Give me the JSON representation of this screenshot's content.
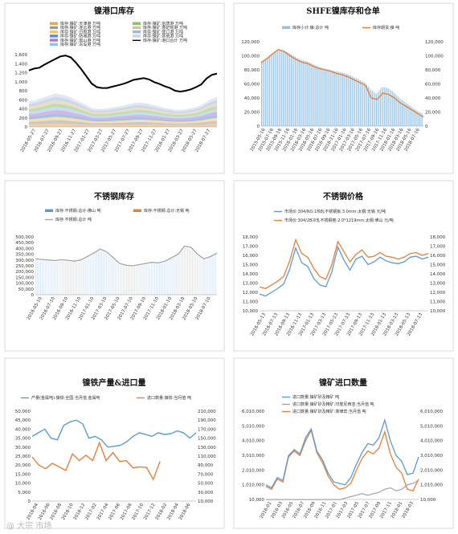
{
  "watermark": "@ 大宗 市场",
  "chart_data": [
    {
      "id": "nickel-port",
      "type": "area",
      "title": "镍港口库存",
      "ylim": [
        0,
        1600
      ],
      "yticks": [
        0,
        200,
        400,
        600,
        800,
        1000,
        1200,
        1400,
        1600
      ],
      "y_tick_labels": [
        "0",
        "200",
        "400",
        "600",
        "800",
        "1,000",
        "1,200",
        "1,400",
        "1,600"
      ],
      "x_tick_labels": [
        "2016-05-27",
        "2016-07-27",
        "2016-09-27",
        "2016-11-27",
        "2017-01-27",
        "2017-03-27",
        "2017-05-27",
        "2017-07-27",
        "2017-09-27",
        "2017-11-27",
        "2018-01-27",
        "2018-03-27",
        "2018-05-27",
        "2018-07-27"
      ],
      "legend": [
        {
          "name": "库存:镍矿:天津港 万吨",
          "color": "#e8a55a"
        },
        {
          "name": "库存:镍矿:连云港 万吨",
          "color": "#9a9a9a"
        },
        {
          "name": "库存:镍矿:日照港 万吨",
          "color": "#f2c76a"
        },
        {
          "name": "库存:镍矿:防城港 万吨",
          "color": "#5b8fd8"
        },
        {
          "name": "库存:镍矿:岚山港 万吨",
          "color": "#b07acb"
        },
        {
          "name": "库存:镍矿:青岛港 万吨",
          "color": "#8fc4ea"
        },
        {
          "name": "库存:镍矿:京唐港 万吨",
          "color": "#8fbf6a"
        },
        {
          "name": "库存:镍矿:曹妃甸港 万吨",
          "color": "#d9c39a"
        },
        {
          "name": "库存:镍矿:营口港 万吨",
          "color": "#a2b8d8"
        },
        {
          "name": "库存:镍矿:其他港 万吨",
          "color": "#c9d6ea"
        },
        {
          "name": "库存:镍矿:港口合计 万吨",
          "color": "#000000"
        }
      ],
      "total": [
        1250,
        1290,
        1310,
        1380,
        1440,
        1500,
        1560,
        1580,
        1540,
        1420,
        1280,
        1120,
        960,
        880,
        860,
        860,
        890,
        920,
        950,
        990,
        1040,
        1060,
        1080,
        1050,
        990,
        950,
        900,
        860,
        800,
        780,
        800,
        830,
        880,
        940,
        1070,
        1150,
        1180
      ],
      "stack_base": [
        560,
        580,
        620,
        660,
        700,
        740,
        720,
        700,
        650,
        600,
        540,
        480,
        420,
        400,
        400,
        410,
        430,
        450,
        470,
        500,
        520,
        540,
        530,
        510,
        480,
        450,
        420,
        400,
        380,
        380,
        390,
        410,
        440,
        480,
        560,
        620,
        660
      ]
    },
    {
      "id": "shfe-nickel",
      "type": "bar+line",
      "title": "SHFE镍库存和仓单",
      "ylim": [
        0,
        120000
      ],
      "yticks": [
        0,
        20000,
        40000,
        60000,
        80000,
        100000,
        120000
      ],
      "y_tick_labels": [
        "0",
        "20,000",
        "40,000",
        "60,000",
        "80,000",
        "100,000",
        "120,000"
      ],
      "x_tick_labels": [
        "2015-05-16",
        "2015-07-16",
        "2015-09-16",
        "2015-11-16",
        "2016-01-16",
        "2016-03-16",
        "2016-05-16",
        "2016-07-16",
        "2016-09-16",
        "2016-11-16",
        "2017-01-16",
        "2017-03-16",
        "2017-05-16",
        "2017-07-16",
        "2017-09-16",
        "2017-11-16",
        "2018-01-16",
        "2018-03-16",
        "2018-05-16",
        "2018-07-16"
      ],
      "series": [
        {
          "name": "库存小计:镍:总计 吨",
          "color": "#8fc0e8",
          "values": [
            92000,
            98000,
            104000,
            108000,
            107000,
            103000,
            98000,
            94000,
            92000,
            88000,
            84000,
            82000,
            80000,
            78000,
            76000,
            74000,
            70000,
            66000,
            62000,
            52000,
            46000,
            56000,
            54000,
            48000,
            40000,
            34000,
            28000,
            22000,
            18000
          ]
        },
        {
          "name": "库存期货:镍 吨",
          "color": "#e8803a",
          "values": [
            90000,
            96000,
            103000,
            109000,
            106000,
            100000,
            95000,
            91000,
            89000,
            85000,
            82000,
            80000,
            78000,
            75000,
            73000,
            70000,
            66000,
            62000,
            58000,
            40000,
            38000,
            47000,
            45000,
            40000,
            33000,
            28000,
            23000,
            18000,
            13000
          ]
        }
      ]
    },
    {
      "id": "stainless-inventory",
      "type": "bar+line",
      "title": "不锈钢库存",
      "ylim": [
        0,
        500000
      ],
      "yticks": [
        0,
        50000,
        100000,
        150000,
        200000,
        250000,
        300000,
        350000,
        400000,
        450000,
        500000
      ],
      "y_tick_labels": [
        "0",
        "50,000",
        "100,000",
        "150,000",
        "200,000",
        "250,000",
        "300,000",
        "350,000",
        "400,000",
        "450,000",
        "500,000"
      ],
      "x_tick_labels": [
        "2016-05-10",
        "2016-07-10",
        "2016-09-10",
        "2016-11-10",
        "2017-01-10",
        "2017-03-10",
        "2017-05-10",
        "2017-07-10",
        "2017-09-10",
        "2017-11-10",
        "2018-01-10",
        "2018-03-10",
        "2018-05-10",
        "2018-07-10"
      ],
      "series": [
        {
          "name": "库存:不锈钢:总计:佛山 吨",
          "color": "#5b9bd5"
        },
        {
          "name": "库存:不锈钢:总计:无锡 吨",
          "color": "#e8803a"
        },
        {
          "name": "库存:不锈钢:总计 吨",
          "color": "#a5a5a5",
          "values": [
            310000,
            305000,
            300000,
            295000,
            302000,
            298000,
            290000,
            300000,
            330000,
            360000,
            395000,
            370000,
            320000,
            270000,
            255000,
            250000,
            260000,
            270000,
            280000,
            275000,
            290000,
            320000,
            350000,
            420000,
            410000,
            350000,
            310000,
            330000,
            360000
          ]
        }
      ],
      "bar_values": [
        300000,
        295000,
        290000,
        285000,
        292000,
        288000,
        280000,
        290000,
        320000,
        350000,
        385000,
        360000,
        310000,
        260000,
        245000,
        240000,
        250000,
        260000,
        270000,
        265000,
        280000,
        310000,
        340000,
        410000,
        400000,
        340000,
        300000,
        320000,
        350000
      ]
    },
    {
      "id": "stainless-price",
      "type": "line",
      "title": "不锈钢价格",
      "ylim": [
        10000,
        18000
      ],
      "yticks": [
        10000,
        11000,
        12000,
        13000,
        14000,
        15000,
        16000,
        17000,
        18000
      ],
      "y_tick_labels": [
        "10,000",
        "11,000",
        "12,000",
        "13,000",
        "14,000",
        "15,000",
        "16,000",
        "17,000",
        "18,000"
      ],
      "x_tick_labels": [
        "2016-05-13",
        "2016-07-13",
        "2016-09-13",
        "2016-11-13",
        "2017-01-13",
        "2017-03-13",
        "2017-05-13",
        "2017-07-13",
        "2017-09-13",
        "2017-11-13",
        "2018-01-13",
        "2018-03-13",
        "2018-05-13",
        "2018-07-13"
      ],
      "series": [
        {
          "name": "市场价:304/NO.1热轧不锈钢板:3.0mm:太钢:无锡 元/吨",
          "color": "#5b9bd5",
          "values": [
            11800,
            11600,
            12000,
            12400,
            12900,
            14500,
            16800,
            15200,
            14800,
            13500,
            12800,
            12600,
            14200,
            16900,
            15500,
            14400,
            15600,
            15900,
            15000,
            15300,
            15800,
            15400,
            15200,
            15100,
            15300,
            15800,
            15900,
            15600,
            15800
          ]
        },
        {
          "name": "市场价:304/2B冷轧不锈钢卷:2.0*1219mm:太钢:佛山 元/吨",
          "color": "#e8803a",
          "values": [
            12600,
            12400,
            12800,
            13200,
            13700,
            15400,
            17700,
            16200,
            15800,
            14600,
            13700,
            13400,
            15000,
            17500,
            16400,
            15300,
            16100,
            16600,
            15800,
            15900,
            16300,
            15900,
            15800,
            15600,
            15800,
            16200,
            16300,
            16000,
            16200
          ]
        }
      ]
    },
    {
      "id": "nickel-iron",
      "type": "line",
      "title": "镍铁产量&进口量",
      "ylim_left": [
        0,
        50000
      ],
      "ylim_right": [
        10000,
        210000
      ],
      "yticks_left": [
        0,
        5000,
        10000,
        15000,
        20000,
        25000,
        30000,
        35000,
        40000,
        45000,
        50000
      ],
      "y_tick_labels_left": [
        "0",
        "5,000",
        "10,000",
        "15,000",
        "20,000",
        "25,000",
        "30,000",
        "35,000",
        "40,000",
        "45,000",
        "50,000"
      ],
      "yticks_right": [
        10000,
        30000,
        50000,
        70000,
        90000,
        110000,
        130000,
        150000,
        170000,
        190000,
        210000
      ],
      "y_tick_labels_right": [
        "10,000",
        "30,000",
        "50,000",
        "70,000",
        "90,000",
        "110,000",
        "130,000",
        "150,000",
        "170,000",
        "190,000",
        "210,000"
      ],
      "x_tick_labels": [
        "2016-04",
        "2016-06",
        "2016-08",
        "2016-10",
        "2016-12",
        "2017-02",
        "2017-04",
        "2017-06",
        "2017-08",
        "2017-10",
        "2017-12",
        "2018-02",
        "2018-04",
        "2018-06"
      ],
      "series": [
        {
          "name": "产量(金属吨):镍铁:全国:当月值 金属吨",
          "color": "#5b9bd5",
          "axis": "left",
          "values": [
            36000,
            38000,
            40000,
            35000,
            34000,
            42000,
            44000,
            45000,
            43000,
            35000,
            36000,
            34000,
            30000,
            30500,
            31000,
            33000,
            36000,
            38000,
            37000,
            36000,
            38000,
            37000,
            37500,
            39000,
            38000,
            35000,
            38000
          ]
        },
        {
          "name": "进口数量:镍铁:当月值 吨",
          "color": "#e8803a",
          "axis": "right",
          "values": [
            108000,
            90000,
            82000,
            94000,
            86000,
            78000,
            115000,
            100000,
            112000,
            100000,
            140000,
            100000,
            118000,
            98000,
            100000,
            84000,
            86000,
            85000,
            58000,
            98000
          ]
        }
      ]
    },
    {
      "id": "nickel-ore-import",
      "type": "line",
      "title": "镍矿进口数量",
      "ylim": [
        10000,
        6010000
      ],
      "yticks": [
        10000,
        1010000,
        2010000,
        3010000,
        4010000,
        5010000,
        6010000
      ],
      "y_tick_labels": [
        "10,000",
        "1,010,000",
        "2,010,000",
        "3,010,000",
        "4,010,000",
        "5,010,000",
        "6,010,000"
      ],
      "x_tick_labels": [
        "2016-01",
        "2016-03",
        "2016-05",
        "2016-07",
        "2016-09",
        "2016-11",
        "2017-01",
        "2017-03",
        "2017-05",
        "2017-07",
        "2017-09",
        "2017-11",
        "2018-01",
        "2018-03"
      ],
      "series": [
        {
          "name": "进口数量:镍矿砂及精矿 吨",
          "color": "#5b9bd5",
          "values": [
            1000000,
            800000,
            1500000,
            1300000,
            3000000,
            3400000,
            3100000,
            4200000,
            4800000,
            3300000,
            2700000,
            1800000,
            1200000,
            1100000,
            1000000,
            1500000,
            2400000,
            3200000,
            3800000,
            3700000,
            4200000,
            5400000,
            4000000,
            3000000,
            2600000,
            1700000,
            1800000,
            2900000
          ]
        },
        {
          "name": "进口数量:镍矿砂及精矿:印度尼西亚:当月值 吨",
          "color": "#a5a5a5",
          "values": [
            0,
            0,
            0,
            0,
            0,
            0,
            0,
            0,
            0,
            0,
            0,
            0,
            0,
            0,
            100000,
            200000,
            300000,
            400000,
            300000,
            400000,
            500000,
            700000,
            800000,
            600000,
            700000,
            1000000,
            1100000,
            1300000
          ]
        },
        {
          "name": "进口数量:镍矿砂及精矿:菲律宾:当月值 吨",
          "color": "#e8803a",
          "values": [
            900000,
            700000,
            1400000,
            1200000,
            2900000,
            3300000,
            3000000,
            4000000,
            4700000,
            3200000,
            2500000,
            1600000,
            1000000,
            700000,
            800000,
            1100000,
            2000000,
            2800000,
            3300000,
            3100000,
            3500000,
            4600000,
            3100000,
            2200000,
            1800000,
            700000,
            600000,
            1400000
          ]
        }
      ]
    }
  ]
}
